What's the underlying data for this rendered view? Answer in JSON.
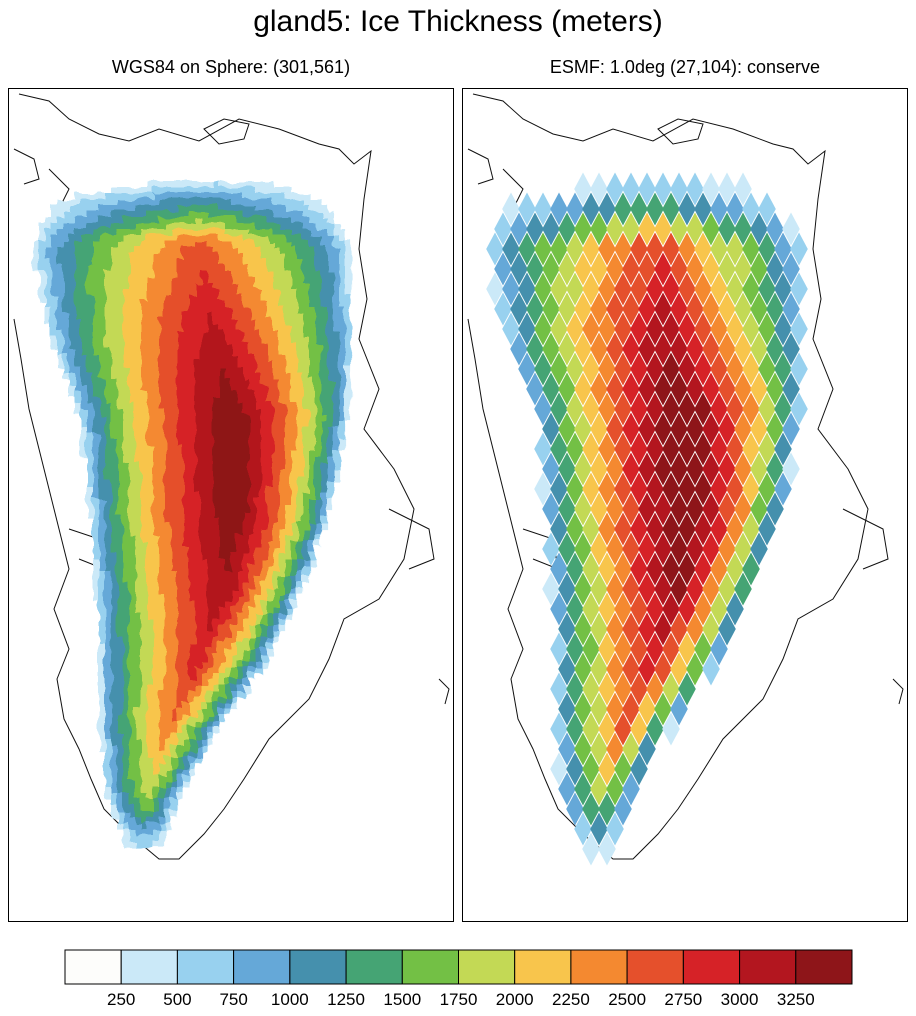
{
  "title": "gland5: Ice Thickness (meters)",
  "panels": [
    {
      "title": "WGS84 on Sphere: (301,561)"
    },
    {
      "title": "ESMF: 1.0deg (27,104): conserve"
    }
  ],
  "colorbar": {
    "labels": [
      "250",
      "500",
      "750",
      "1000",
      "1250",
      "1500",
      "1750",
      "2000",
      "2250",
      "2500",
      "2750",
      "3000",
      "3250"
    ],
    "colors": [
      "#fdfdfb",
      "#cbe9f8",
      "#98d1ef",
      "#65a8d8",
      "#4590ad",
      "#45a474",
      "#73c045",
      "#c3d955",
      "#f8c54c",
      "#f48930",
      "#e5502c",
      "#d62227",
      "#b3161f",
      "#8e1519"
    ]
  },
  "chart_data": {
    "type": "heatmap",
    "title": "gland5: Ice Thickness (meters)",
    "panels": [
      "WGS84 on Sphere: (301,561)",
      "ESMF: 1.0deg (27,104): conserve"
    ],
    "levels": [
      250,
      500,
      750,
      1000,
      1250,
      1500,
      1750,
      2000,
      2250,
      2500,
      2750,
      3000,
      3250
    ],
    "colormap": [
      "#fdfdfb",
      "#cbe9f8",
      "#98d1ef",
      "#65a8d8",
      "#4590ad",
      "#45a474",
      "#73c045",
      "#c3d955",
      "#f8c54c",
      "#f48930",
      "#e5502c",
      "#d62227",
      "#b3161f",
      "#8e1519"
    ],
    "legend_placement": "bottom"
  }
}
